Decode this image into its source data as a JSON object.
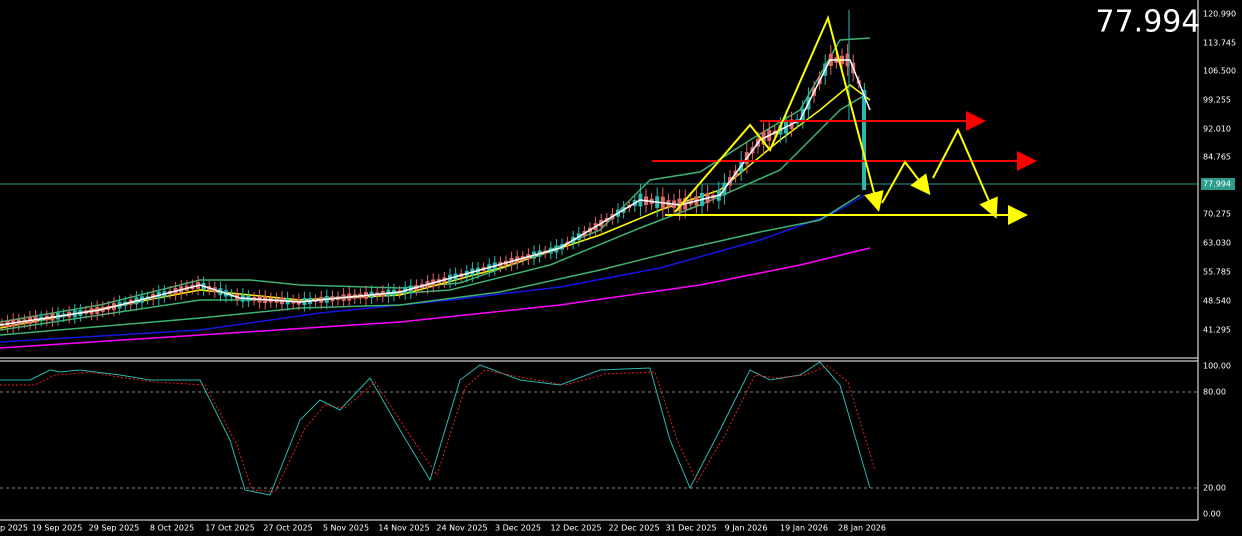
{
  "current_price": "77.994",
  "price_axis": [
    "120.990",
    "113.745",
    "106.500",
    "99.255",
    "92.010",
    "84.765",
    "77.994",
    "70.275",
    "63.030",
    "55.785",
    "48.540",
    "41.295"
  ],
  "indicator_axis": [
    "100.00",
    "80.00",
    "20.00",
    "0.00"
  ],
  "date_axis": [
    "p 2025",
    "19 Sep 2025",
    "29 Sep 2025",
    "8 Oct 2025",
    "17 Oct 2025",
    "27 Oct 2025",
    "5 Nov 2025",
    "14 Nov 2025",
    "24 Nov 2025",
    "3 Dec 2025",
    "12 Dec 2025",
    "22 Dec 2025",
    "31 Dec 2025",
    "9 Jan 2026",
    "19 Jan 2026",
    "28 Jan 2026"
  ]
}
